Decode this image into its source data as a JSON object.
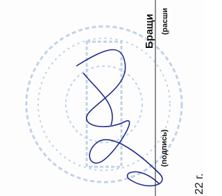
{
  "fields": {
    "name": "Бращи",
    "name_caption": "(расши",
    "signature_caption": "(подпись)",
    "date": "22 г."
  }
}
